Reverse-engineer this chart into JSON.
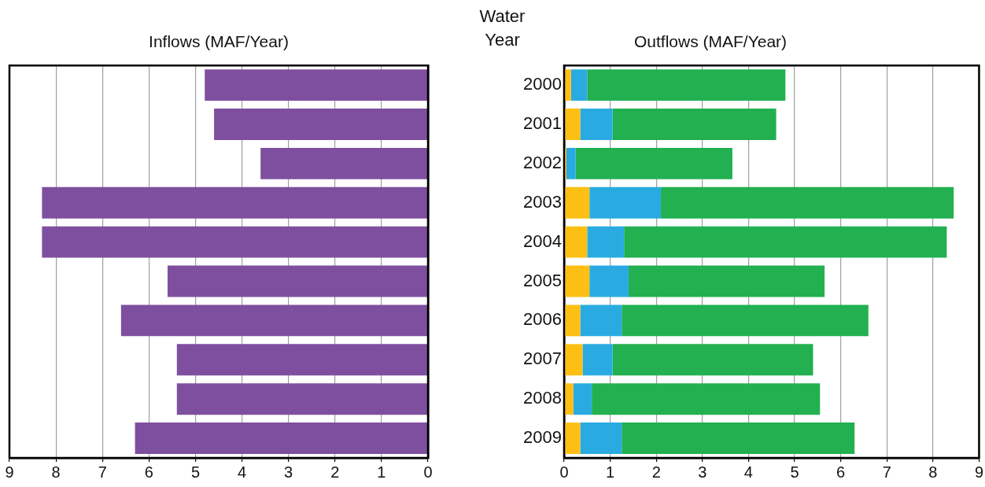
{
  "chart_data": [
    {
      "type": "bar",
      "orientation": "horizontal",
      "title": "Inflows (MAF/Year)",
      "categories": [
        "2000",
        "2001",
        "2002",
        "2003",
        "2004",
        "2005",
        "2006",
        "2007",
        "2008",
        "2009"
      ],
      "values": [
        4.8,
        4.6,
        3.6,
        8.3,
        8.3,
        5.6,
        6.6,
        5.4,
        5.4,
        6.3
      ],
      "color": "#7f4f9f",
      "xlim": [
        9,
        0
      ],
      "xticks": [
        9,
        8,
        7,
        6,
        5,
        4,
        3,
        2,
        1,
        0
      ],
      "grid": "x",
      "tick_labels": "x"
    },
    {
      "type": "bar",
      "orientation": "horizontal",
      "stacked": true,
      "title": "Outflows (MAF/Year)",
      "ylabel": "Water Year",
      "categories": [
        "2000",
        "2001",
        "2002",
        "2003",
        "2004",
        "2005",
        "2006",
        "2007",
        "2008",
        "2009"
      ],
      "series": [
        {
          "color": "#fdbf14",
          "values": [
            0.15,
            0.35,
            0.05,
            0.55,
            0.5,
            0.55,
            0.35,
            0.4,
            0.2,
            0.35
          ]
        },
        {
          "color": "#29abe2",
          "values": [
            0.35,
            0.7,
            0.2,
            1.55,
            0.8,
            0.85,
            0.9,
            0.65,
            0.4,
            0.9
          ]
        },
        {
          "color": "#22b050",
          "values": [
            4.3,
            3.55,
            3.4,
            6.35,
            7.0,
            4.25,
            5.35,
            4.35,
            4.95,
            5.05
          ]
        }
      ],
      "xlim": [
        0,
        9
      ],
      "xticks": [
        0,
        1,
        2,
        3,
        4,
        5,
        6,
        7,
        8,
        9
      ],
      "grid": "x"
    }
  ]
}
